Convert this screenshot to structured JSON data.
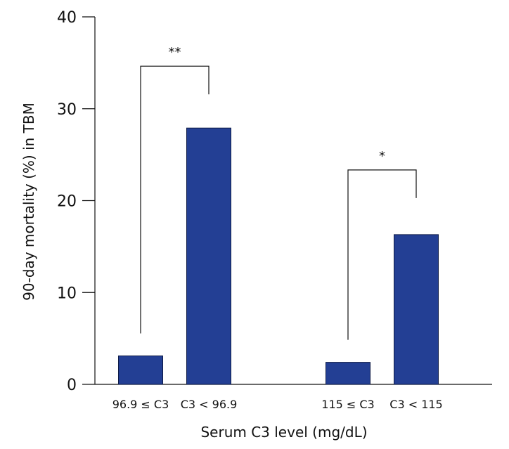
{
  "chart_data": {
    "type": "bar",
    "xlabel": "Serum C3 level (mg/dL)",
    "ylabel": "90-day mortality (%) in TBM",
    "ylim": [
      0,
      40
    ],
    "yticks": [
      "0",
      "10",
      "20",
      "30",
      "40"
    ],
    "grid": false,
    "bar_color": "#233f94",
    "groups": [
      {
        "categories": [
          "96.9 ≤ C3",
          "C3 < 96.9"
        ],
        "values": [
          3.1,
          27.9
        ],
        "significance": "**"
      },
      {
        "categories": [
          "115 ≤ C3",
          "C3 < 115"
        ],
        "values": [
          2.4,
          16.3
        ],
        "significance": "*"
      }
    ]
  }
}
